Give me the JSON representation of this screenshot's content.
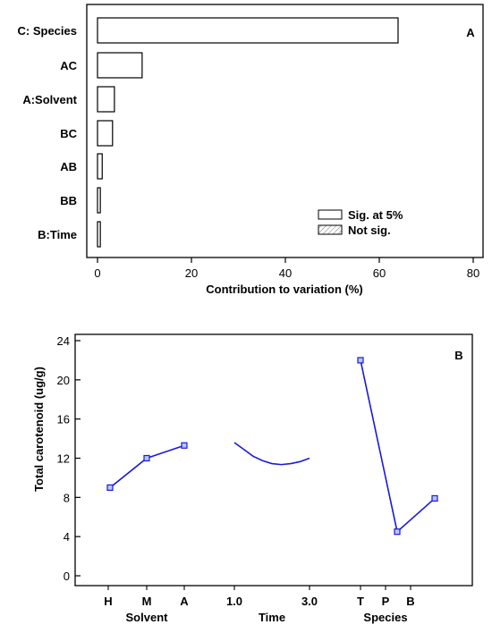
{
  "chart_data": [
    {
      "type": "bar",
      "orientation": "horizontal",
      "panel_label": "A",
      "xlabel": "Contribution to variation (%)",
      "xlim": [
        0,
        80
      ],
      "xticks": [
        0,
        20,
        40,
        60,
        80
      ],
      "categories": [
        "C: Species",
        "AC",
        "A:Solvent",
        "BC",
        "AB",
        "BB",
        "B:Time"
      ],
      "values": [
        64,
        9.5,
        3.6,
        3.2,
        1.0,
        0.6,
        0.6
      ],
      "significance": [
        "sig",
        "sig",
        "sig",
        "sig",
        "sig",
        "sig",
        "sig"
      ],
      "legend": {
        "position": "bottom-right",
        "items": [
          {
            "label": "Sig. at 5%",
            "style": "open"
          },
          {
            "label": "Not sig.",
            "style": "hatched"
          }
        ]
      }
    },
    {
      "type": "line",
      "panel_label": "B",
      "ylabel": "Total carotenoid (ug/g)",
      "ylim": [
        -1,
        24
      ],
      "yticks": [
        0,
        4,
        8,
        12,
        16,
        20,
        24
      ],
      "line_color": "#1a1adb",
      "groups": [
        {
          "factor": "Solvent",
          "tick_labels": [
            "H",
            "M",
            "A"
          ],
          "markers": true,
          "values": [
            9.0,
            12.0,
            13.3
          ]
        },
        {
          "factor": "Time",
          "tick_labels": [
            "1.0",
            "3.0"
          ],
          "markers": false,
          "x": [
            1.0,
            1.25,
            1.5,
            1.75,
            2.0,
            2.25,
            2.5,
            2.75,
            3.0
          ],
          "values": [
            13.6,
            12.9,
            12.2,
            11.75,
            11.45,
            11.35,
            11.45,
            11.65,
            12.0
          ]
        },
        {
          "factor": "Species",
          "tick_labels": [
            "T",
            "P",
            "B"
          ],
          "markers": true,
          "values": [
            22.0,
            4.5,
            7.9
          ]
        }
      ]
    }
  ]
}
